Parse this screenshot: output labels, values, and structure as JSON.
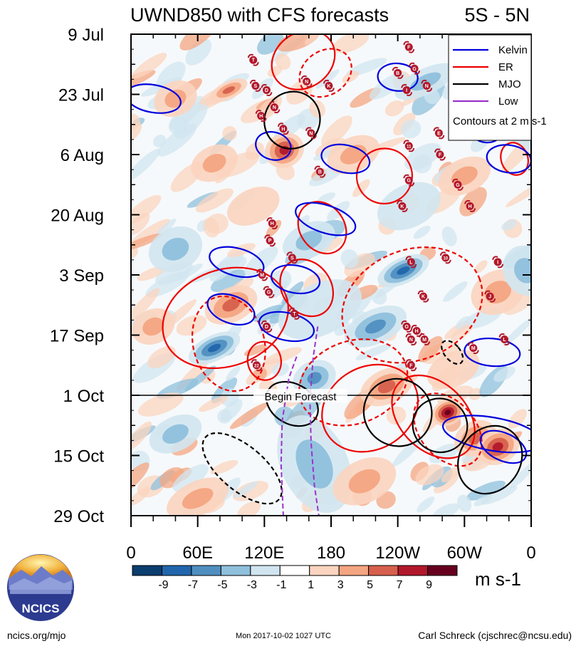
{
  "chart_data": {
    "type": "heatmap",
    "title": "UWND850 with CFS forecasts",
    "region": "5S - 5N",
    "x_ticks": [
      "0",
      "60E",
      "120E",
      "180",
      "120W",
      "60W",
      "0"
    ],
    "x_values": [
      0,
      60,
      120,
      180,
      240,
      300,
      360
    ],
    "y_ticks": [
      "9 Jul",
      "23 Jul",
      "6 Aug",
      "20 Aug",
      "3 Sep",
      "17 Sep",
      "1 Oct",
      "15 Oct",
      "29 Oct"
    ],
    "y_values": [
      0,
      14,
      28,
      42,
      56,
      70,
      84,
      98,
      112
    ],
    "forecast_label": "Begin Forecast",
    "forecast_day": 84,
    "colorbar": {
      "values": [
        "-9",
        "-7",
        "-5",
        "-3",
        "-1",
        "1",
        "3",
        "5",
        "7",
        "9"
      ],
      "colors": [
        "#0b3d6e",
        "#2166ac",
        "#4f8fc0",
        "#8fc0dc",
        "#d1e5f0",
        "#ffffff",
        "#fbd4bf",
        "#f4a582",
        "#d6604d",
        "#b2182b",
        "#67001f"
      ],
      "units": "m s-1"
    },
    "legend": {
      "entries": [
        {
          "name": "Kelvin",
          "color": "#0000dd"
        },
        {
          "name": "ER",
          "color": "#ee0000"
        },
        {
          "name": "MJO",
          "color": "#000000"
        },
        {
          "name": "Low",
          "color": "#9933cc"
        }
      ],
      "note": "Contours at 2 m s-1",
      "position": "top-right"
    },
    "blobs": [
      {
        "lon": 88,
        "day": 13,
        "dlon": 18,
        "dday": 2,
        "v": 5
      },
      {
        "lon": 138,
        "day": 27,
        "dlon": 18,
        "dday": 4,
        "v": 7
      },
      {
        "lon": 75,
        "day": 30,
        "dlon": 22,
        "dday": 4,
        "v": 4
      },
      {
        "lon": 265,
        "day": 11,
        "dlon": 30,
        "dday": 3,
        "v": -4
      },
      {
        "lon": 360,
        "day": 22,
        "dlon": 20,
        "dday": 5,
        "v": -3
      },
      {
        "lon": 300,
        "day": 33,
        "dlon": 25,
        "dday": 4,
        "v": 4
      },
      {
        "lon": 40,
        "day": 50,
        "dlon": 25,
        "dday": 5,
        "v": -3
      },
      {
        "lon": 245,
        "day": 55,
        "dlon": 25,
        "dday": 3,
        "v": -8
      },
      {
        "lon": 220,
        "day": 68,
        "dlon": 30,
        "dday": 4,
        "v": -5
      },
      {
        "lon": 90,
        "day": 63,
        "dlon": 25,
        "dday": 4,
        "v": 6
      },
      {
        "lon": 75,
        "day": 73,
        "dlon": 25,
        "dday": 3,
        "v": -7
      },
      {
        "lon": 165,
        "day": 80,
        "dlon": 20,
        "dday": 4,
        "v": -6
      },
      {
        "lon": 230,
        "day": 82,
        "dlon": 25,
        "dday": 4,
        "v": 6
      },
      {
        "lon": 285,
        "day": 88,
        "dlon": 15,
        "dday": 3,
        "v": 9
      },
      {
        "lon": 310,
        "day": 94,
        "dlon": 20,
        "dday": 4,
        "v": 5
      },
      {
        "lon": 330,
        "day": 96,
        "dlon": 20,
        "dday": 4,
        "v": 7
      },
      {
        "lon": 165,
        "day": 100,
        "dlon": 30,
        "dday": 12,
        "v": -3
      },
      {
        "lon": 40,
        "day": 93,
        "dlon": 25,
        "dday": 4,
        "v": -4
      },
      {
        "lon": 170,
        "day": 64,
        "dlon": 40,
        "dday": 6,
        "v": -2
      },
      {
        "lon": 250,
        "day": 40,
        "dlon": 30,
        "dday": 5,
        "v": -2
      },
      {
        "lon": 40,
        "day": 15,
        "dlon": 20,
        "dday": 4,
        "v": 3
      },
      {
        "lon": 200,
        "day": 28,
        "dlon": 25,
        "dday": 4,
        "v": 3
      },
      {
        "lon": 330,
        "day": 60,
        "dlon": 25,
        "dday": 5,
        "v": 3
      },
      {
        "lon": 355,
        "day": 55,
        "dlon": 20,
        "dday": 6,
        "v": -3
      },
      {
        "lon": 210,
        "day": 104,
        "dlon": 30,
        "dday": 5,
        "v": 3
      },
      {
        "lon": 60,
        "day": 108,
        "dlon": 30,
        "dday": 4,
        "v": 3
      },
      {
        "lon": 160,
        "day": 48,
        "dlon": 25,
        "dday": 4,
        "v": -3
      },
      {
        "lon": 110,
        "day": 40,
        "dlon": 25,
        "dday": 4,
        "v": 2
      },
      {
        "lon": 20,
        "day": 68,
        "dlon": 20,
        "dday": 4,
        "v": 3
      },
      {
        "lon": 290,
        "day": 78,
        "dlon": 25,
        "dday": 4,
        "v": 2
      }
    ],
    "contours": [
      {
        "type": "ER",
        "dashed": false,
        "lon": 155,
        "day": 6,
        "dlon": 30,
        "dday": 2,
        "rot": -35
      },
      {
        "type": "ER",
        "dashed": true,
        "lon": 175,
        "day": 9,
        "dlon": 25,
        "dday": 1.6,
        "rot": -35
      },
      {
        "type": "ER",
        "dashed": false,
        "lon": 228,
        "day": 33,
        "dlon": 25,
        "dday": 2,
        "rot": -30
      },
      {
        "type": "ER",
        "dashed": false,
        "lon": 172,
        "day": 45,
        "dlon": 20,
        "dday": 2,
        "rot": -35
      },
      {
        "type": "ER",
        "dashed": false,
        "lon": 158,
        "day": 59,
        "dlon": 22,
        "dday": 2.2,
        "rot": -35
      },
      {
        "type": "ER",
        "dashed": false,
        "lon": 85,
        "day": 66,
        "dlon": 58,
        "dday": 3.5,
        "rot": -20
      },
      {
        "type": "ER",
        "dashed": true,
        "lon": 88,
        "day": 72,
        "dlon": 32,
        "dday": 3.5,
        "rot": -15
      },
      {
        "type": "ER",
        "dashed": true,
        "lon": 253,
        "day": 63,
        "dlon": 65,
        "dday": 4,
        "rot": -22
      },
      {
        "type": "ER",
        "dashed": false,
        "lon": 120,
        "day": 76,
        "dlon": 15,
        "dday": 1.4,
        "rot": -10
      },
      {
        "type": "ER",
        "dashed": true,
        "lon": 200,
        "day": 81,
        "dlon": 50,
        "dday": 3,
        "rot": -20
      },
      {
        "type": "ER",
        "dashed": false,
        "lon": 215,
        "day": 87,
        "dlon": 45,
        "dday": 3,
        "rot": -30
      },
      {
        "type": "ER",
        "dashed": false,
        "lon": 272,
        "day": 89,
        "dlon": 30,
        "dday": 3.5,
        "rot": -45
      },
      {
        "type": "ER",
        "dashed": true,
        "lon": 285,
        "day": 92,
        "dlon": 25,
        "dday": 3,
        "rot": -40
      },
      {
        "type": "ER",
        "dashed": false,
        "lon": 345,
        "day": 29,
        "dlon": 12,
        "dday": 1.2,
        "rot": -20
      },
      {
        "type": "Kelvin",
        "dashed": false,
        "lon": 20,
        "day": 15,
        "dlon": 25,
        "dday": 1,
        "rot": 10
      },
      {
        "type": "Kelvin",
        "dashed": false,
        "lon": 128,
        "day": 26,
        "dlon": 16,
        "dday": 1,
        "rot": 15
      },
      {
        "type": "Kelvin",
        "dashed": false,
        "lon": 193,
        "day": 29,
        "dlon": 22,
        "dday": 1,
        "rot": 12
      },
      {
        "type": "Kelvin",
        "dashed": false,
        "lon": 175,
        "day": 43,
        "dlon": 28,
        "dday": 1,
        "rot": 18
      },
      {
        "type": "Kelvin",
        "dashed": false,
        "lon": 95,
        "day": 53,
        "dlon": 25,
        "dday": 1,
        "rot": 15
      },
      {
        "type": "Kelvin",
        "dashed": false,
        "lon": 90,
        "day": 64,
        "dlon": 22,
        "dday": 1,
        "rot": 20
      },
      {
        "type": "Kelvin",
        "dashed": false,
        "lon": 148,
        "day": 57,
        "dlon": 22,
        "dday": 1,
        "rot": 10
      },
      {
        "type": "Kelvin",
        "dashed": false,
        "lon": 140,
        "day": 68,
        "dlon": 25,
        "dday": 1,
        "rot": 12
      },
      {
        "type": "Kelvin",
        "dashed": false,
        "lon": 340,
        "day": 29,
        "dlon": 20,
        "dday": 1,
        "rot": 8
      },
      {
        "type": "Kelvin",
        "dashed": false,
        "lon": 325,
        "day": 93,
        "dlon": 45,
        "dday": 1.2,
        "rot": 10
      },
      {
        "type": "Kelvin",
        "dashed": false,
        "lon": 335,
        "day": 96,
        "dlon": 22,
        "dday": 1,
        "rot": 25
      },
      {
        "type": "Kelvin",
        "dashed": false,
        "lon": 240,
        "day": 10,
        "dlon": 18,
        "dday": 1,
        "rot": 5
      },
      {
        "type": "Kelvin",
        "dashed": false,
        "lon": 320,
        "day": 22,
        "dlon": 15,
        "dday": 1,
        "rot": 5
      },
      {
        "type": "Kelvin",
        "dashed": false,
        "lon": 325,
        "day": 74,
        "dlon": 25,
        "dday": 1,
        "rot": 5
      },
      {
        "type": "MJO",
        "dashed": false,
        "lon": 145,
        "day": 20,
        "dlon": 26,
        "dday": 2,
        "rot": -60
      },
      {
        "type": "MJO",
        "dashed": false,
        "lon": 145,
        "day": 86,
        "dlon": 18,
        "dday": 2,
        "rot": -60
      },
      {
        "type": "MJO",
        "dashed": false,
        "lon": 240,
        "day": 88,
        "dlon": 30,
        "dday": 2.5,
        "rot": -55
      },
      {
        "type": "MJO",
        "dashed": false,
        "lon": 278,
        "day": 91,
        "dlon": 24,
        "dday": 2,
        "rot": -60
      },
      {
        "type": "MJO",
        "dashed": false,
        "lon": 323,
        "day": 99,
        "dlon": 32,
        "dday": 2.2,
        "rot": -55
      },
      {
        "type": "MJO",
        "dashed": true,
        "lon": 100,
        "day": 101,
        "dlon": 20,
        "dday": 3.5,
        "rot": -50
      },
      {
        "type": "MJO",
        "dashed": true,
        "lon": 289,
        "day": 74,
        "dlon": 7,
        "dday": 1,
        "rot": -40
      }
    ],
    "storms": [
      {
        "lon": 110,
        "day": 6,
        "label": "T"
      },
      {
        "lon": 250,
        "day": 3,
        "label": "F"
      },
      {
        "lon": 240,
        "day": 9,
        "label": "B"
      },
      {
        "lon": 255,
        "day": 8,
        "label": "G"
      },
      {
        "lon": 112,
        "day": 12,
        "label": "S"
      },
      {
        "lon": 122,
        "day": 13,
        "label": "D"
      },
      {
        "lon": 158,
        "day": 11,
        "label": "N"
      },
      {
        "lon": 178,
        "day": 12,
        "label": "K"
      },
      {
        "lon": 248,
        "day": 13,
        "label": "I"
      },
      {
        "lon": 266,
        "day": 12,
        "label": "N"
      },
      {
        "lon": 129,
        "day": 17,
        "label": "N"
      },
      {
        "lon": 117,
        "day": 19,
        "label": "H"
      },
      {
        "lon": 137,
        "day": 22,
        "label": "H"
      },
      {
        "lon": 162,
        "day": 23,
        "label": "N"
      },
      {
        "lon": 277,
        "day": 23,
        "label": "E"
      },
      {
        "lon": 250,
        "day": 26,
        "label": "11"
      },
      {
        "lon": 278,
        "day": 28,
        "label": "F"
      },
      {
        "lon": 170,
        "day": 32,
        "label": "B"
      },
      {
        "lon": 250,
        "day": 34,
        "label": "G"
      },
      {
        "lon": 294,
        "day": 35,
        "label": "G"
      },
      {
        "lon": 244,
        "day": 40,
        "label": "K"
      },
      {
        "lon": 305,
        "day": 40,
        "label": "H"
      },
      {
        "lon": 127,
        "day": 44,
        "label": "H"
      },
      {
        "lon": 125,
        "day": 48,
        "label": "P"
      },
      {
        "lon": 145,
        "day": 52,
        "label": "S"
      },
      {
        "lon": 283,
        "day": 52,
        "label": "10"
      },
      {
        "lon": 252,
        "day": 53,
        "label": "L"
      },
      {
        "lon": 330,
        "day": 53,
        "label": "I"
      },
      {
        "lon": 118,
        "day": 56,
        "label": "M"
      },
      {
        "lon": 124,
        "day": 60,
        "label": "G"
      },
      {
        "lon": 263,
        "day": 61,
        "label": "K"
      },
      {
        "lon": 323,
        "day": 61,
        "label": "J"
      },
      {
        "lon": 147,
        "day": 65,
        "label": "T"
      },
      {
        "lon": 122,
        "day": 68,
        "label": "D"
      },
      {
        "lon": 248,
        "day": 68,
        "label": "O"
      },
      {
        "lon": 257,
        "day": 69,
        "label": "H"
      },
      {
        "lon": 252,
        "day": 71,
        "label": "N"
      },
      {
        "lon": 264,
        "day": 71,
        "label": "M"
      },
      {
        "lon": 308,
        "day": 73,
        "label": "M"
      },
      {
        "lon": 336,
        "day": 71,
        "label": "L"
      },
      {
        "lon": 113,
        "day": 77,
        "label": "22"
      },
      {
        "lon": 252,
        "day": 77,
        "label": "F"
      }
    ],
    "low_lines": [
      [
        [
          149,
          75
        ],
        [
          142,
          80
        ],
        [
          136,
          90
        ],
        [
          135,
          100
        ],
        [
          137,
          112
        ]
      ],
      [
        [
          168,
          68
        ],
        [
          164,
          75
        ],
        [
          161,
          85
        ],
        [
          162,
          95
        ],
        [
          165,
          105
        ],
        [
          169,
          112
        ]
      ]
    ]
  },
  "logo": {
    "text": "NCICS"
  },
  "footer": {
    "left": "ncics.org/mjo",
    "center": "Mon 2017-10-02 1027 UTC",
    "right": "Carl Schreck (cjschrec@ncsu.edu)"
  }
}
